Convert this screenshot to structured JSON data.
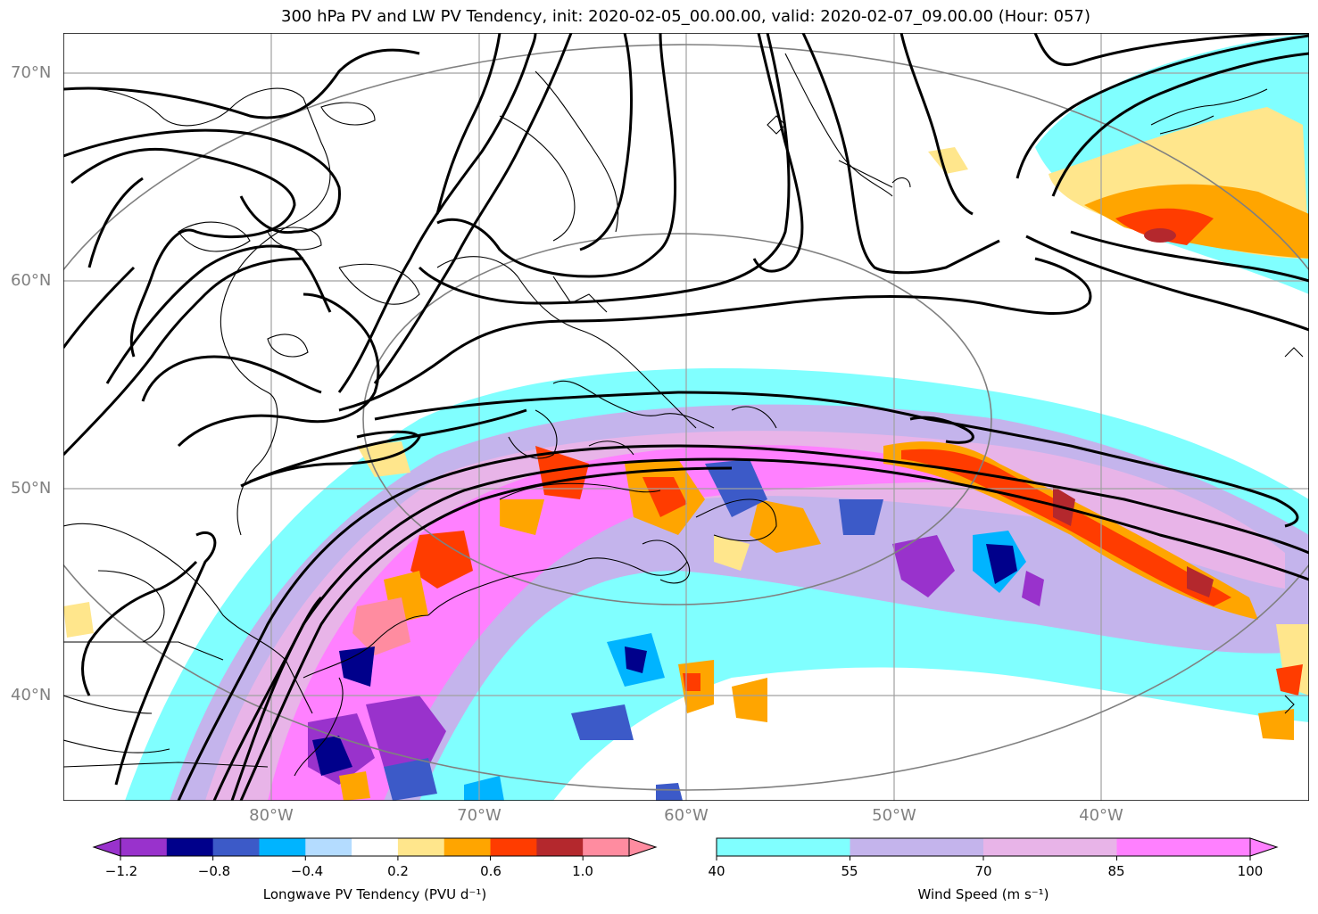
{
  "title": "300 hPa PV and LW PV Tendency, init: 2020-02-05_00.00.00, valid: 2020-02-07_09.00.00 (Hour: 057)",
  "map": {
    "lat_labels": [
      "70°N",
      "60°N",
      "50°N",
      "40°N"
    ],
    "lon_labels": [
      "80°W",
      "70°W",
      "60°W",
      "50°W",
      "40°W"
    ]
  },
  "colorbars": {
    "pv_tendency": {
      "label": "Longwave PV Tendency (PVU d⁻¹)",
      "ticks": [
        "−1.2",
        "−0.8",
        "−0.4",
        "0.2",
        "0.6",
        "1.0"
      ],
      "colors": [
        "#9932cc",
        "#00008b",
        "#3c5ac8",
        "#00b4ff",
        "#b4dcff",
        "#ffffff",
        "#ffe68c",
        "#ffa500",
        "#ff3c00",
        "#b4282d",
        "#ff8ca0"
      ],
      "under_color": "#9932cc",
      "over_color": "#ff8ca0"
    },
    "wind_speed": {
      "label": "Wind Speed (m s⁻¹)",
      "ticks": [
        "40",
        "55",
        "70",
        "85",
        "100"
      ],
      "colors": [
        "#80ffff",
        "#c4b4ec",
        "#e8b4e8",
        "#ff80ff"
      ],
      "over_color": "#ff80ff"
    }
  }
}
